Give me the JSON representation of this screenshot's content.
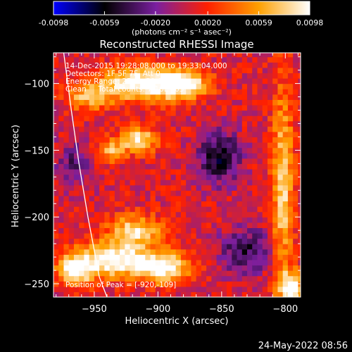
{
  "chart_data": {
    "type": "heatmap",
    "title": "Reconstructed RHESSI Image",
    "xlabel": "Heliocentric X (arcsec)",
    "ylabel": "Heliocentric Y (arcsec)",
    "xlim": [
      -982,
      -788
    ],
    "ylim": [
      -260,
      -77
    ],
    "x_ticks": [
      -950,
      -900,
      -850,
      -800
    ],
    "y_ticks": [
      -100,
      -150,
      -200,
      -250
    ],
    "colorbar": {
      "min": -0.0098,
      "max": 0.0098,
      "ticks": [
        "-0.0098",
        "-0.0059",
        "-0.0020",
        "0.0020",
        "0.0059",
        "0.0098"
      ],
      "units": "(photons cm⁻² s⁻¹ asec⁻²)",
      "colormap": [
        "#0000ff",
        "#000000",
        "#7a1fa0",
        "#ff2000",
        "#ffa000",
        "#ffffff"
      ]
    },
    "annotations": [
      "14-Dec-2015 19:28:08.000 to 19:33:04.000",
      "Detectors: 1F 5F 7F, Att 0",
      "Energy Range: 25.0 - 50.0 keV",
      "Clean     Total counts: 7.16E+03",
      "Position of Peak = [-920,-109]"
    ],
    "sources": [
      {
        "x": -915,
        "y": -100,
        "sx": 22,
        "sy": 9,
        "amp": 0.0098
      },
      {
        "x": -880,
        "y": -100,
        "sx": 14,
        "sy": 8,
        "amp": 0.0085
      },
      {
        "x": -955,
        "y": -110,
        "sx": 12,
        "sy": 7,
        "amp": 0.006
      },
      {
        "x": -915,
        "y": -142,
        "sx": 10,
        "sy": 7,
        "amp": 0.008
      },
      {
        "x": -938,
        "y": -150,
        "sx": 8,
        "sy": 6,
        "amp": 0.006
      },
      {
        "x": -918,
        "y": -210,
        "sx": 14,
        "sy": 8,
        "amp": 0.008
      },
      {
        "x": -935,
        "y": -232,
        "sx": 22,
        "sy": 9,
        "amp": 0.0098
      },
      {
        "x": -895,
        "y": -238,
        "sx": 14,
        "sy": 8,
        "amp": 0.009
      },
      {
        "x": -965,
        "y": -240,
        "sx": 10,
        "sy": 8,
        "amp": 0.008
      },
      {
        "x": -802,
        "y": -180,
        "sx": 6,
        "sy": 55,
        "amp": 0.007
      },
      {
        "x": -795,
        "y": -252,
        "sx": 7,
        "sy": 8,
        "amp": 0.009
      },
      {
        "x": -852,
        "y": -155,
        "sx": 12,
        "sy": 14,
        "amp": -0.0065
      },
      {
        "x": -830,
        "y": -225,
        "sx": 16,
        "sy": 12,
        "amp": -0.005
      },
      {
        "x": -965,
        "y": -160,
        "sx": 10,
        "sy": 12,
        "amp": -0.004
      }
    ],
    "limb": [
      [
        -974,
        -77
      ],
      [
        -968,
        -120
      ],
      [
        -962,
        -160
      ],
      [
        -955,
        -200
      ],
      [
        -946,
        -245
      ],
      [
        -940,
        -260
      ]
    ]
  },
  "footer": {
    "timestamp": "24-May-2022 08:56"
  }
}
